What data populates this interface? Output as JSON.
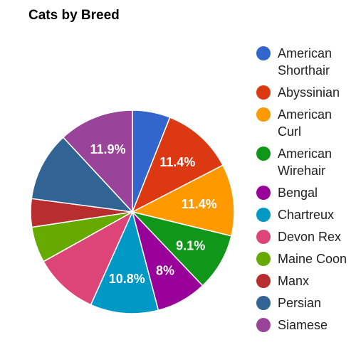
{
  "chart_data": {
    "type": "pie",
    "title": "Cats by Breed",
    "legend_position": "right",
    "slice_order": "clockwise-from-top",
    "categories": [
      "American Shorthair",
      "Abyssinian",
      "American Curl",
      "American Wirehair",
      "Bengal",
      "Chartreux",
      "Devon Rex",
      "Maine Coon",
      "Manx",
      "Persian",
      "Siamese"
    ],
    "values": [
      6.0,
      11.4,
      11.4,
      9.1,
      8.0,
      10.8,
      10.2,
      5.7,
      4.5,
      11.0,
      11.9
    ],
    "slice_labels": [
      "",
      "11.4%",
      "11.4%",
      "9.1%",
      "8%",
      "10.8%",
      "",
      "",
      "",
      "",
      "11.9%"
    ],
    "colors": [
      "#3366cc",
      "#dc3912",
      "#ff9900",
      "#109618",
      "#990099",
      "#0099c6",
      "#dd4477",
      "#66aa00",
      "#b82e2e",
      "#316395",
      "#994499"
    ]
  }
}
